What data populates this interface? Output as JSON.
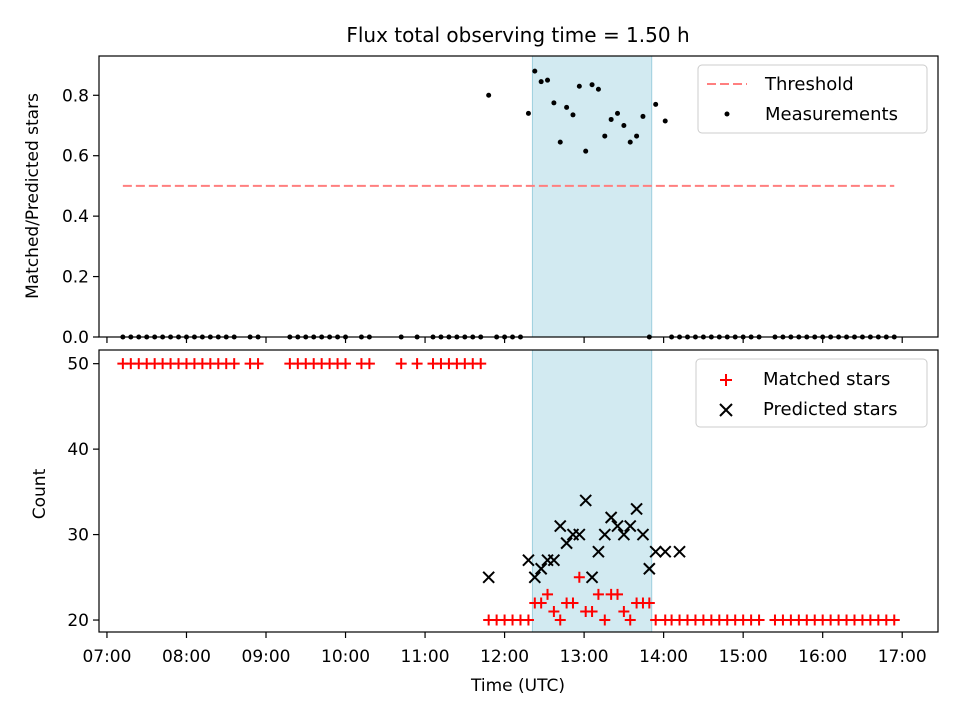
{
  "chart_data": [
    {
      "type": "scatter",
      "title": "Flux total observing time = 1.50 h",
      "ylabel": "Matched/Predicted stars",
      "xlabel": "",
      "xlim": [
        6.9,
        17.45
      ],
      "ylim": [
        0,
        0.93
      ],
      "yticks": [
        0.0,
        0.2,
        0.4,
        0.6,
        0.8
      ],
      "ytick_labels": [
        "0.0",
        "0.2",
        "0.4",
        "0.6",
        "0.8"
      ],
      "shaded_interval": [
        12.35,
        13.85
      ],
      "legend": {
        "placement": "top-right",
        "entries": [
          "Threshold",
          "Measurements"
        ]
      },
      "threshold": {
        "name": "Threshold",
        "x": [
          7.2,
          16.9
        ],
        "y": 0.5,
        "color": "#ff7f7f",
        "style": "dashed"
      },
      "measurements": {
        "name": "Measurements",
        "color": "#000000",
        "x": [
          7.2,
          7.3,
          7.4,
          7.5,
          7.6,
          7.7,
          7.8,
          7.9,
          8.0,
          8.1,
          8.2,
          8.3,
          8.4,
          8.5,
          8.6,
          8.8,
          8.9,
          9.3,
          9.4,
          9.5,
          9.6,
          9.7,
          9.8,
          9.9,
          10.0,
          10.2,
          10.3,
          10.7,
          10.9,
          11.1,
          11.2,
          11.3,
          11.4,
          11.5,
          11.6,
          11.7,
          11.8,
          11.9,
          12.0,
          12.1,
          12.2,
          12.3,
          12.38,
          12.46,
          12.54,
          12.62,
          12.7,
          12.78,
          12.86,
          12.94,
          13.02,
          13.1,
          13.18,
          13.26,
          13.34,
          13.42,
          13.5,
          13.58,
          13.66,
          13.74,
          13.82,
          13.9,
          14.02,
          14.1,
          14.2,
          14.3,
          14.4,
          14.5,
          14.6,
          14.7,
          14.8,
          14.9,
          15.0,
          15.1,
          15.2,
          15.4,
          15.5,
          15.6,
          15.7,
          15.8,
          15.9,
          16.0,
          16.1,
          16.2,
          16.3,
          16.4,
          16.5,
          16.6,
          16.7,
          16.8,
          16.9
        ],
        "y": [
          0,
          0,
          0,
          0,
          0,
          0,
          0,
          0,
          0,
          0,
          0,
          0,
          0,
          0,
          0,
          0,
          0,
          0,
          0,
          0,
          0,
          0,
          0,
          0,
          0,
          0,
          0,
          0,
          0,
          0,
          0,
          0,
          0,
          0,
          0,
          0,
          0.8,
          0,
          0,
          0,
          0,
          0.74,
          0.88,
          0.845,
          0.85,
          0.775,
          0.645,
          0.76,
          0.735,
          0.83,
          0.615,
          0.835,
          0.82,
          0.665,
          0.72,
          0.74,
          0.7,
          0.645,
          0.665,
          0.73,
          0,
          0.77,
          0.715,
          0,
          0,
          0,
          0,
          0,
          0,
          0,
          0,
          0,
          0,
          0,
          0,
          0,
          0,
          0,
          0,
          0,
          0,
          0,
          0,
          0,
          0,
          0,
          0,
          0,
          0,
          0,
          0
        ]
      }
    },
    {
      "type": "scatter",
      "title": "",
      "ylabel": "Count",
      "xlabel": "Time (UTC)",
      "xlim": [
        6.9,
        17.45
      ],
      "ylim": [
        18.6,
        51.6
      ],
      "yticks": [
        20,
        30,
        40,
        50
      ],
      "ytick_labels": [
        "20",
        "30",
        "40",
        "50"
      ],
      "xticks": [
        7,
        8,
        9,
        10,
        11,
        12,
        13,
        14,
        15,
        16,
        17
      ],
      "xtick_labels": [
        "07:00",
        "08:00",
        "09:00",
        "10:00",
        "11:00",
        "12:00",
        "13:00",
        "14:00",
        "15:00",
        "16:00",
        "17:00"
      ],
      "shaded_interval": [
        12.35,
        13.85
      ],
      "legend": {
        "placement": "top-right",
        "entries": [
          "Matched stars",
          "Predicted stars"
        ]
      },
      "matched": {
        "name": "Matched stars",
        "color": "#ff0000",
        "x": [
          7.2,
          7.3,
          7.4,
          7.5,
          7.6,
          7.7,
          7.8,
          7.9,
          8.0,
          8.1,
          8.2,
          8.3,
          8.4,
          8.5,
          8.6,
          8.8,
          8.9,
          9.3,
          9.4,
          9.5,
          9.6,
          9.7,
          9.8,
          9.9,
          10.0,
          10.2,
          10.3,
          10.7,
          10.9,
          11.1,
          11.2,
          11.3,
          11.4,
          11.5,
          11.6,
          11.7,
          11.8,
          11.9,
          12.0,
          12.1,
          12.2,
          12.3,
          12.38,
          12.46,
          12.54,
          12.62,
          12.7,
          12.78,
          12.86,
          12.94,
          13.02,
          13.1,
          13.18,
          13.26,
          13.34,
          13.42,
          13.5,
          13.58,
          13.66,
          13.74,
          13.82,
          13.9,
          14.02,
          14.1,
          14.2,
          14.3,
          14.4,
          14.5,
          14.6,
          14.7,
          14.8,
          14.9,
          15.0,
          15.1,
          15.2,
          15.4,
          15.5,
          15.6,
          15.7,
          15.8,
          15.9,
          16.0,
          16.1,
          16.2,
          16.3,
          16.4,
          16.5,
          16.6,
          16.7,
          16.8,
          16.9
        ],
        "y": [
          50,
          50,
          50,
          50,
          50,
          50,
          50,
          50,
          50,
          50,
          50,
          50,
          50,
          50,
          50,
          50,
          50,
          50,
          50,
          50,
          50,
          50,
          50,
          50,
          50,
          50,
          50,
          50,
          50,
          50,
          50,
          50,
          50,
          50,
          50,
          50,
          20,
          20,
          20,
          20,
          20,
          20,
          22,
          22,
          23,
          21,
          20,
          22,
          22,
          25,
          21,
          21,
          23,
          20,
          23,
          23,
          21,
          20,
          22,
          22,
          22,
          20,
          20,
          20,
          20,
          20,
          20,
          20,
          20,
          20,
          20,
          20,
          20,
          20,
          20,
          20,
          20,
          20,
          20,
          20,
          20,
          20,
          20,
          20,
          20,
          20,
          20,
          20,
          20,
          20,
          20
        ]
      },
      "predicted": {
        "name": "Predicted stars",
        "color": "#000000",
        "x": [
          11.8,
          12.3,
          12.38,
          12.46,
          12.54,
          12.62,
          12.7,
          12.78,
          12.86,
          12.94,
          13.02,
          13.1,
          13.18,
          13.26,
          13.34,
          13.42,
          13.5,
          13.58,
          13.66,
          13.74,
          13.82,
          13.9,
          14.02,
          14.2
        ],
        "y": [
          25,
          27,
          25,
          26,
          27,
          27,
          31,
          29,
          30,
          30,
          34,
          25,
          28,
          30,
          32,
          31,
          30,
          31,
          33,
          30,
          26,
          28,
          28,
          28
        ]
      }
    }
  ]
}
